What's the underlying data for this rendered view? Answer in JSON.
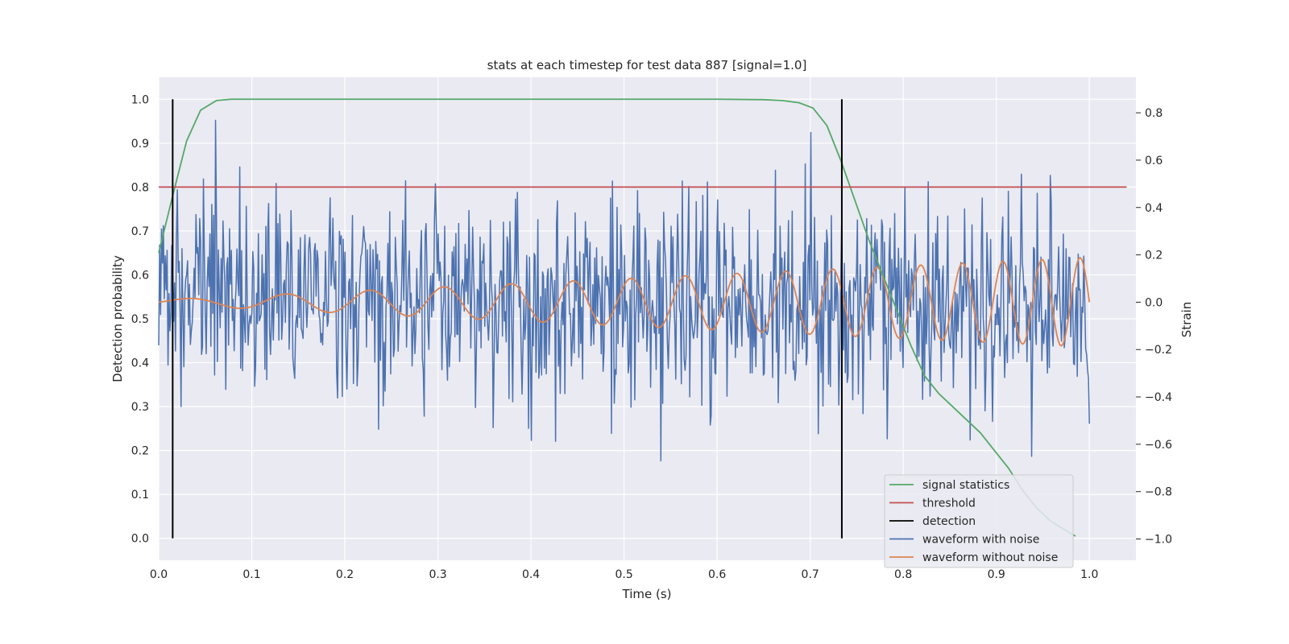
{
  "chart_data": {
    "type": "line",
    "title": "stats at each timestep for test data 887 [signal=1.0]",
    "xlabel": "Time (s)",
    "ylabel": "Detection probability",
    "y2label": "Strain",
    "xlim": [
      0.0,
      1.05
    ],
    "ylim": [
      -0.05,
      1.05
    ],
    "y2lim": [
      -1.09,
      0.95
    ],
    "grid": true,
    "legend_position": "lower-right",
    "x_ticks": [
      "0.0",
      "0.1",
      "0.2",
      "0.3",
      "0.4",
      "0.5",
      "0.6",
      "0.7",
      "0.8",
      "0.9",
      "1.0"
    ],
    "y_ticks": [
      "0.0",
      "0.1",
      "0.2",
      "0.3",
      "0.4",
      "0.5",
      "0.6",
      "0.7",
      "0.8",
      "0.9",
      "1.0"
    ],
    "y2_ticks": [
      "−1.0",
      "−0.8",
      "−0.6",
      "−0.4",
      "−0.2",
      "0.0",
      "0.2",
      "0.4",
      "0.6",
      "0.8"
    ],
    "series": [
      {
        "name": "signal statistics",
        "color": "#55a868",
        "axis": "left",
        "x": [
          0.0,
          0.015,
          0.03,
          0.045,
          0.062,
          0.078,
          0.095,
          0.11,
          0.2,
          0.3,
          0.4,
          0.5,
          0.6,
          0.65,
          0.67,
          0.688,
          0.703,
          0.718,
          0.733,
          0.748,
          0.763,
          0.778,
          0.793,
          0.808,
          0.823,
          0.838,
          0.853,
          0.868,
          0.883,
          0.898,
          0.913,
          0.928,
          0.943,
          0.958,
          0.973,
          0.985
        ],
        "y": [
          0.65,
          0.78,
          0.905,
          0.975,
          0.997,
          1.0,
          1.0,
          1.0,
          1.0,
          1.0,
          1.0,
          1.0,
          1.0,
          0.999,
          0.997,
          0.992,
          0.98,
          0.94,
          0.86,
          0.77,
          0.68,
          0.6,
          0.52,
          0.44,
          0.37,
          0.33,
          0.3,
          0.27,
          0.24,
          0.2,
          0.16,
          0.11,
          0.07,
          0.04,
          0.02,
          0.005
        ]
      },
      {
        "name": "threshold",
        "color": "#c44e52",
        "axis": "left",
        "x": [
          0.0,
          1.04
        ],
        "y": [
          0.8,
          0.8
        ]
      },
      {
        "name": "detection",
        "color": "#000000",
        "axis": "left",
        "segments": [
          {
            "x": 0.015,
            "y": [
              0.0,
              1.0
            ]
          },
          {
            "x": 0.734,
            "y": [
              0.0,
              1.0
            ]
          }
        ]
      },
      {
        "name": "waveform with noise",
        "color": "#4c72b0",
        "axis": "right",
        "generator": "noise",
        "x_range": [
          0.0,
          1.0
        ],
        "n_points": 1000,
        "amplitude_std": 0.22,
        "seed": 887
      },
      {
        "name": "waveform without noise",
        "color": "#dd8452",
        "axis": "right",
        "generator": "chirp",
        "x_range": [
          0.0,
          1.0
        ],
        "n_points": 600,
        "amplitude_start": 0.01,
        "amplitude_end": 0.19,
        "phase_cycles_start": 8.0,
        "phase_cycles_end": 25.0
      }
    ]
  },
  "legend": {
    "items": [
      {
        "label": "signal statistics",
        "color": "#55a868"
      },
      {
        "label": "threshold",
        "color": "#c44e52"
      },
      {
        "label": "detection",
        "color": "#000000"
      },
      {
        "label": "waveform with noise",
        "color": "#4c72b0"
      },
      {
        "label": "waveform without noise",
        "color": "#dd8452"
      }
    ]
  }
}
